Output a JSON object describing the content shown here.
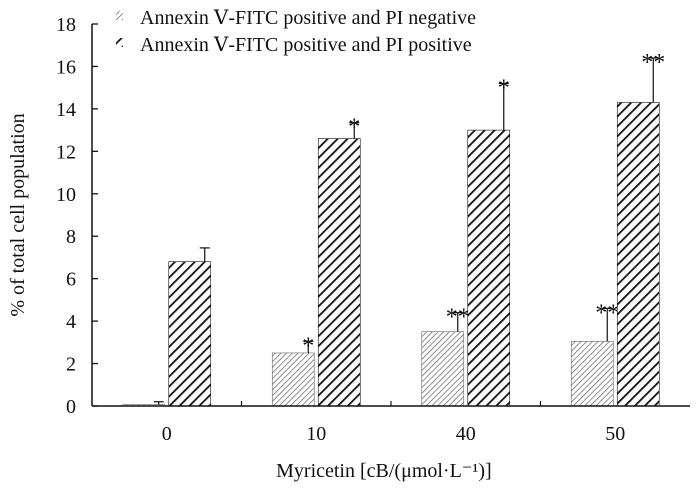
{
  "chart_data": {
    "type": "bar",
    "title": "",
    "xlabel": "Myricetin",
    "xlabel_unit": "[cB/(μmol·L⁻¹)]",
    "ylabel": "% of total cell population",
    "ylim": [
      0,
      18
    ],
    "yticks": [
      0,
      2,
      4,
      6,
      8,
      10,
      12,
      14,
      16,
      18
    ],
    "categories": [
      "0",
      "10",
      "40",
      "50"
    ],
    "legend_position": "top-left",
    "series": [
      {
        "name": "Annexin Ⅴ-FITC positive and PI negative",
        "pattern": "fine-hatch",
        "values": [
          0.05,
          2.5,
          3.5,
          3.05
        ],
        "errors": [
          0.15,
          0.55,
          0.9,
          1.55
        ],
        "significance": [
          "",
          "*",
          "**",
          "**"
        ]
      },
      {
        "name": "Annexin Ⅴ-FITC positive and PI positive",
        "pattern": "bold-hatch",
        "values": [
          6.8,
          12.6,
          13.0,
          14.3
        ],
        "errors": [
          0.65,
          0.75,
          2.2,
          2.1
        ],
        "significance": [
          "",
          "*",
          "*",
          "**"
        ]
      }
    ]
  }
}
